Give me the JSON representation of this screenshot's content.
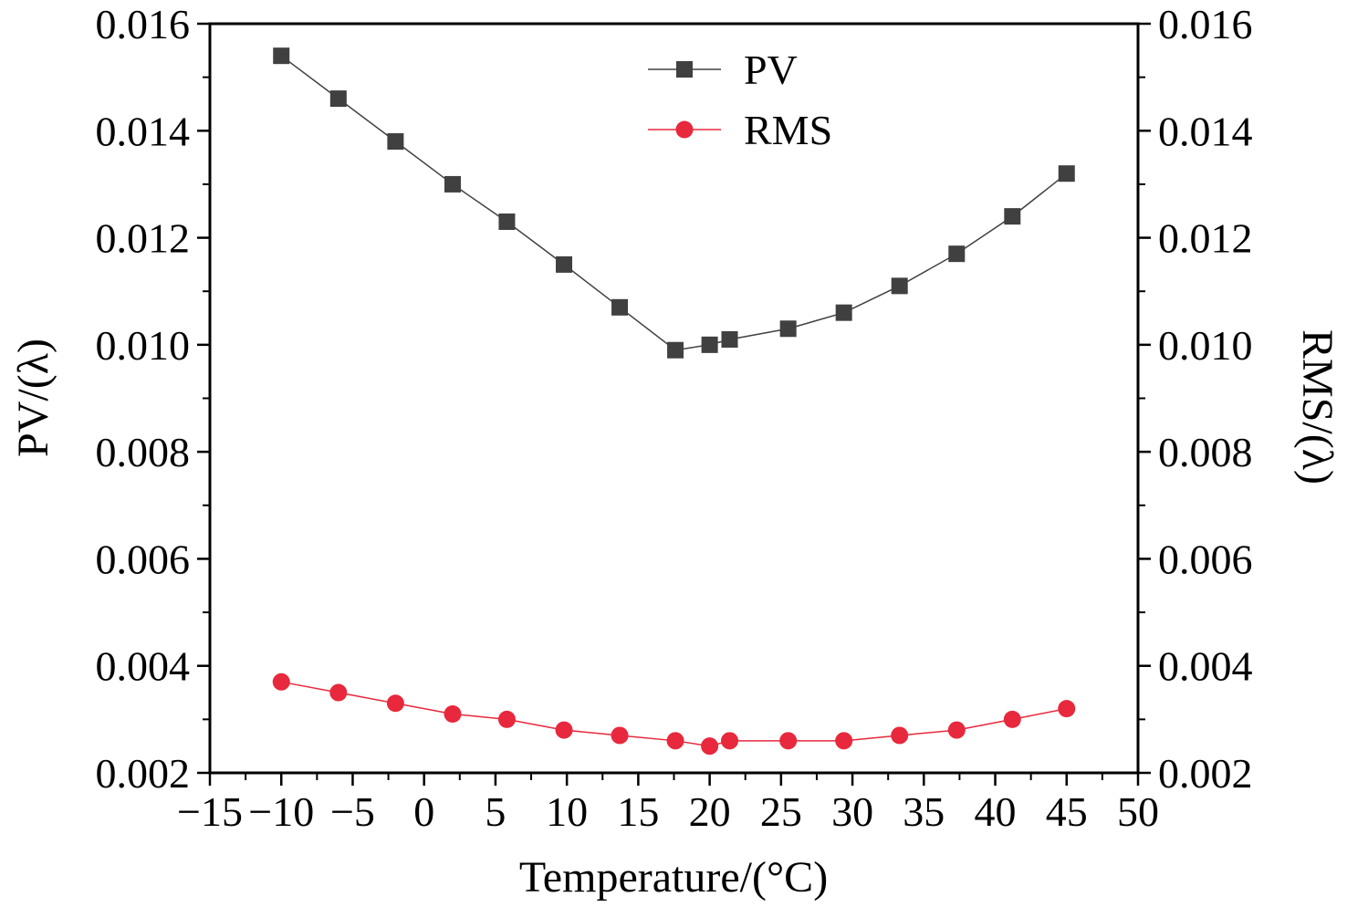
{
  "chart_data": {
    "type": "line",
    "title": "",
    "xlabel": "Temperature/(°C)",
    "ylabel_left": "PV/(λ)",
    "ylabel_right": "RMS/(λ)",
    "xlim": [
      -15,
      50
    ],
    "ylim": [
      0.002,
      0.016
    ],
    "x_ticks": [
      -15,
      -10,
      -5,
      0,
      5,
      10,
      15,
      20,
      25,
      30,
      35,
      40,
      45,
      50
    ],
    "x_tick_labels": [
      "−15",
      "−10",
      "−5",
      "0",
      "5",
      "10",
      "15",
      "20",
      "25",
      "30",
      "35",
      "40",
      "45",
      "50"
    ],
    "y_ticks": [
      0.002,
      0.004,
      0.006,
      0.008,
      0.01,
      0.012,
      0.014,
      0.016
    ],
    "y_tick_labels": [
      "0.002",
      "0.004",
      "0.006",
      "0.008",
      "0.010",
      "0.012",
      "0.014",
      "0.016"
    ],
    "grid": false,
    "legend_position": "top-center",
    "x": [
      -10,
      -6,
      -2,
      2,
      5.8,
      9.8,
      13.7,
      17.6,
      20,
      21.4,
      25.5,
      29.4,
      33.3,
      37.3,
      41.2,
      45
    ],
    "series": [
      {
        "name": "PV",
        "marker": "square",
        "color": "#404040",
        "values": [
          0.0154,
          0.0146,
          0.0138,
          0.013,
          0.0123,
          0.0115,
          0.0107,
          0.0099,
          0.01,
          0.0101,
          0.0103,
          0.0106,
          0.0111,
          0.0117,
          0.0124,
          0.0132
        ]
      },
      {
        "name": "RMS",
        "marker": "circle",
        "color": "#e8283c",
        "values": [
          0.0037,
          0.0035,
          0.0033,
          0.0031,
          0.003,
          0.0028,
          0.0027,
          0.0026,
          0.0025,
          0.0026,
          0.0026,
          0.0026,
          0.0027,
          0.0028,
          0.003,
          0.0032
        ]
      }
    ]
  }
}
